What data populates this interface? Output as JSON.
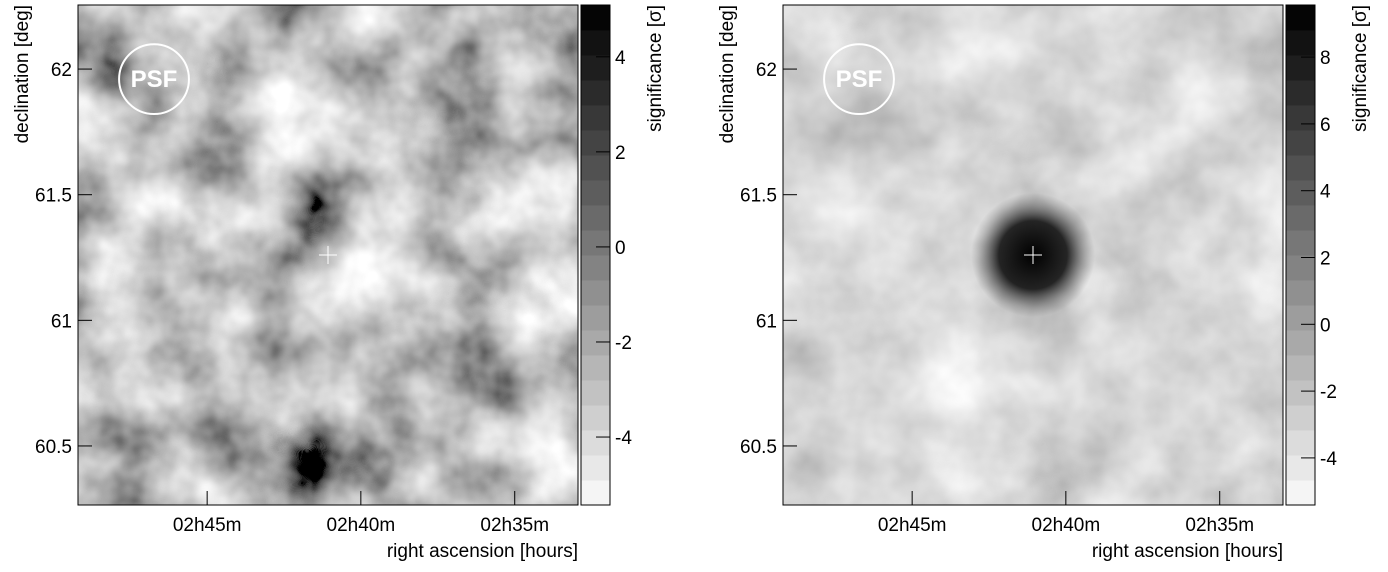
{
  "chart_data": [
    {
      "type": "heatmap",
      "x_label": "right ascension [hours]",
      "y_label": "declination [deg]",
      "colorbar_label": "significance [σ]",
      "xlim": [
        2.82,
        2.549
      ],
      "xticks": [
        {
          "value": 2.75,
          "label": "02h45m"
        },
        {
          "value": 2.6667,
          "label": "02h40m"
        },
        {
          "value": 2.5833,
          "label": "02h35m"
        }
      ],
      "ylim": [
        60.265,
        62.255
      ],
      "yticks": [
        60.5,
        61,
        61.5,
        62
      ],
      "clim": [
        -5.43,
        5.09
      ],
      "cticks": [
        -4,
        -2,
        0,
        2,
        4
      ],
      "psf": {
        "label": "PSF",
        "ra": 2.7788,
        "dec": 61.96,
        "radius": 0.139
      },
      "source": {
        "ra": 2.6845,
        "dec": 61.26,
        "significance": 0
      }
    },
    {
      "type": "heatmap",
      "x_label": "right ascension [hours]",
      "y_label": "declination [deg]",
      "colorbar_label": "significance [σ]",
      "xlim": [
        2.82,
        2.549
      ],
      "xticks": [
        {
          "value": 2.75,
          "label": "02h45m"
        },
        {
          "value": 2.6667,
          "label": "02h40m"
        },
        {
          "value": 2.5833,
          "label": "02h35m"
        }
      ],
      "ylim": [
        60.265,
        62.255
      ],
      "yticks": [
        60.5,
        61,
        61.5,
        62
      ],
      "clim": [
        -5.41,
        9.56
      ],
      "cticks": [
        -4,
        -2,
        0,
        2,
        4,
        6,
        8
      ],
      "psf": {
        "label": "PSF",
        "ra": 2.7788,
        "dec": 61.96,
        "radius": 0.139
      },
      "source": {
        "ra": 2.6845,
        "dec": 61.26,
        "significance": 9
      }
    }
  ]
}
